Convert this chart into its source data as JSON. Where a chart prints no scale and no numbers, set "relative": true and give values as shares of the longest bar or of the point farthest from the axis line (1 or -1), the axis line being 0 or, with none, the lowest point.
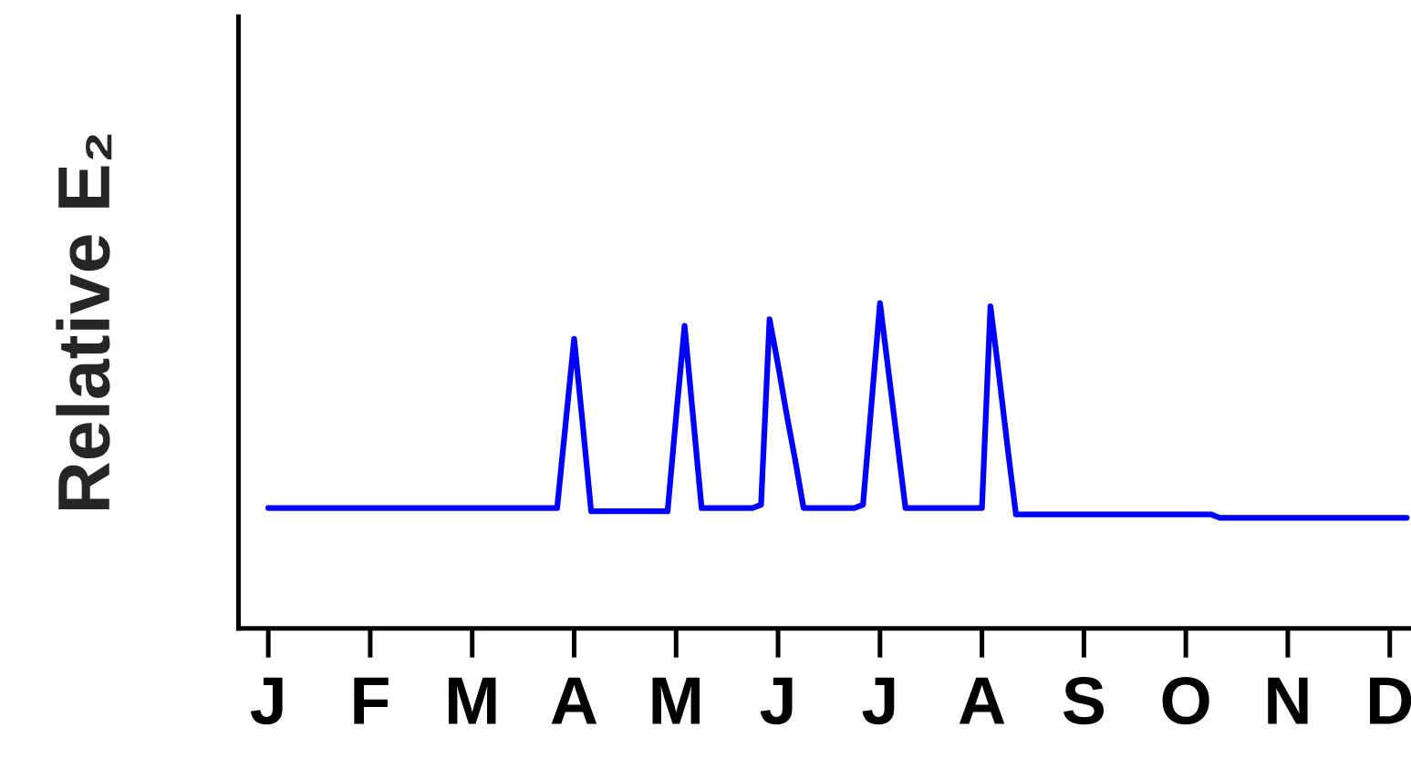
{
  "chart_data": {
    "type": "line",
    "relative": true,
    "ylabel": "Relative E₂",
    "categories": [
      "J",
      null,
      null,
      null,
      null,
      null,
      null,
      null,
      null,
      null,
      null,
      null,
      "F",
      null,
      null,
      null,
      null,
      null,
      null,
      null,
      null,
      null,
      null,
      null,
      "M",
      null,
      null,
      null,
      null,
      null,
      null,
      null,
      null,
      null,
      null,
      null,
      "A",
      null,
      null,
      null,
      null,
      null,
      null,
      null,
      null,
      null,
      null,
      null,
      "M",
      null,
      null,
      null,
      null,
      null,
      null,
      null,
      null,
      null,
      null,
      null,
      "J",
      null,
      null,
      null,
      null,
      null,
      null,
      null,
      null,
      null,
      null,
      null,
      "J",
      null,
      null,
      null,
      null,
      null,
      null,
      null,
      null,
      null,
      null,
      null,
      "A",
      null,
      null,
      null,
      null,
      null,
      null,
      null,
      null,
      null,
      null,
      null,
      "S",
      null,
      null,
      null,
      null,
      null,
      null,
      null,
      null,
      null,
      null,
      null,
      "O",
      null,
      null,
      null,
      null,
      null,
      null,
      null,
      null,
      null,
      null,
      null,
      "N",
      null,
      null,
      null,
      null,
      null,
      null,
      null,
      null,
      null,
      null,
      null,
      "D",
      null,
      null
    ],
    "series": [
      {
        "color": "#0000ff",
        "values": [
          0.37,
          0.37,
          0.37,
          0.37,
          0.37,
          0.37,
          0.37,
          0.37,
          0.37,
          0.37,
          0.37,
          0.37,
          0.37,
          0.37,
          0.37,
          0.37,
          0.37,
          0.37,
          0.37,
          0.37,
          0.37,
          0.37,
          0.37,
          0.37,
          0.37,
          0.37,
          0.37,
          0.37,
          0.37,
          0.37,
          0.37,
          0.37,
          0.37,
          0.37,
          0.37,
          0.63,
          0.89,
          0.63,
          0.36,
          0.36,
          0.36,
          0.36,
          0.36,
          0.36,
          0.36,
          0.36,
          0.36,
          0.36,
          0.65,
          0.93,
          0.65,
          0.37,
          0.37,
          0.37,
          0.37,
          0.37,
          0.37,
          0.37,
          0.38,
          0.95,
          0.81,
          0.66,
          0.52,
          0.37,
          0.37,
          0.37,
          0.37,
          0.37,
          0.37,
          0.37,
          0.38,
          0.69,
          1.0,
          0.79,
          0.58,
          0.37,
          0.37,
          0.37,
          0.37,
          0.37,
          0.37,
          0.37,
          0.37,
          0.37,
          0.37,
          0.99,
          0.78,
          0.56,
          0.35,
          0.35,
          0.35,
          0.35,
          0.35,
          0.35,
          0.35,
          0.35,
          0.35,
          0.35,
          0.35,
          0.35,
          0.35,
          0.35,
          0.35,
          0.35,
          0.35,
          0.35,
          0.35,
          0.35,
          0.35,
          0.35,
          0.35,
          0.35,
          0.34,
          0.34,
          0.34,
          0.34,
          0.34,
          0.34,
          0.34,
          0.34,
          0.34,
          0.34,
          0.34,
          0.34,
          0.34,
          0.34,
          0.34,
          0.34,
          0.34,
          0.34,
          0.34,
          0.34,
          0.34,
          0.34,
          0.34
        ]
      }
    ],
    "grid": false,
    "legend": false,
    "marker": "none",
    "line_style": "solid"
  }
}
